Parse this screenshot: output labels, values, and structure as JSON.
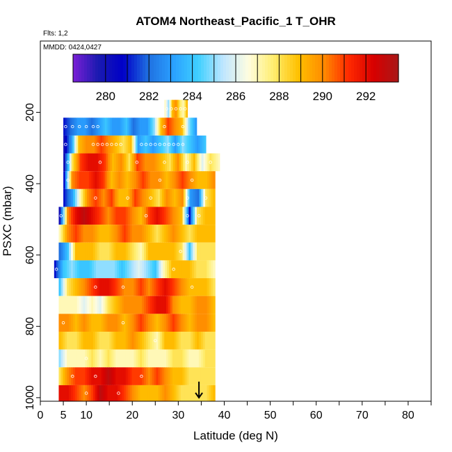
{
  "chart_data": {
    "type": "heatmap",
    "title": "ATOM4 Northeast_Pacific_1 T_OHR",
    "flights_label": "Flts: 1,2",
    "dates_label": "MMDD: 0424,0427",
    "xlabel": "Latitude (deg N)",
    "ylabel": "PSXC (mbar)",
    "xlim": [
      0,
      85
    ],
    "ylim": [
      1010,
      0
    ],
    "x_ticks": [
      0,
      5,
      10,
      20,
      30,
      40,
      50,
      60,
      70,
      80
    ],
    "x_minor_ticks": [
      15,
      25,
      35,
      45,
      55,
      65,
      75,
      85
    ],
    "y_ticks": [
      200,
      400,
      600,
      800,
      1000
    ],
    "colorbar": {
      "range": [
        278.5,
        293.5
      ],
      "ticks": [
        280,
        282,
        284,
        286,
        288,
        290,
        292
      ],
      "colors": [
        "#7a1fd6",
        "#1a1ab0",
        "#0000c8",
        "#1f6fe0",
        "#2aa0ff",
        "#3fd0ff",
        "#bfe6ff",
        "#fffde0",
        "#ffee70",
        "#ffc000",
        "#ff8c00",
        "#ff2a00",
        "#d80000",
        "#a81818"
      ]
    },
    "arrow_marker": {
      "x": 34.5,
      "y_from": 955,
      "y_to": 1000
    },
    "series": [
      {
        "p_top": 165,
        "p_bot": 215,
        "lat0": 27,
        "lat1": 32,
        "values": [
          287,
          285,
          289,
          290,
          288,
          287,
          289
        ],
        "circles": [
          27.5,
          28.5,
          29.5,
          30.5,
          31.5
        ]
      },
      {
        "p_top": 215,
        "p_bot": 265,
        "lat0": 5,
        "lat1": 34,
        "values": [
          281,
          282,
          283,
          283,
          282,
          283,
          284,
          283,
          283,
          284,
          282,
          283,
          283,
          285,
          289,
          291,
          290,
          289,
          285,
          283
        ],
        "circles": [
          5.5,
          7,
          8.5,
          10,
          11.5,
          12.5,
          27,
          31
        ]
      },
      {
        "p_top": 265,
        "p_bot": 315,
        "lat0": 5,
        "lat1": 36,
        "values": [
          280,
          283,
          289,
          290,
          290,
          291,
          290,
          289,
          288,
          289,
          283,
          284,
          283,
          284,
          285,
          283,
          285,
          284,
          283,
          284
        ],
        "circles": [
          5.5,
          11.5,
          12.5,
          13.5,
          14.5,
          15.5,
          16.5,
          17.5,
          22,
          23,
          24,
          25,
          26,
          27,
          28,
          29,
          30,
          31
        ]
      },
      {
        "p_top": 315,
        "p_bot": 365,
        "lat0": 5,
        "lat1": 39,
        "values": [
          280,
          288,
          291,
          292,
          292,
          291,
          289,
          290,
          288,
          291,
          290,
          290,
          289,
          288,
          290,
          287,
          289,
          286,
          288,
          287
        ],
        "circles": [
          6,
          13,
          21,
          27,
          32,
          37
        ]
      },
      {
        "p_top": 365,
        "p_bot": 415,
        "lat0": 5,
        "lat1": 38,
        "values": [
          281,
          290,
          291,
          291,
          292,
          291,
          289,
          290,
          289,
          290,
          291,
          290,
          290,
          289,
          290,
          291,
          290,
          289,
          289,
          290
        ],
        "circles": [
          6,
          26,
          33
        ]
      },
      {
        "p_top": 415,
        "p_bot": 465,
        "lat0": 5,
        "lat1": 38,
        "values": [
          281,
          283,
          287,
          290,
          291,
          290,
          291,
          289,
          289,
          291,
          290,
          289,
          288,
          290,
          289,
          290,
          283,
          282,
          288,
          289
        ],
        "circles": [
          12,
          19,
          24,
          32,
          36
        ]
      },
      {
        "p_top": 465,
        "p_bot": 515,
        "lat0": 4,
        "lat1": 38,
        "values": [
          280,
          290,
          292,
          293,
          292,
          291,
          290,
          291,
          291,
          290,
          289,
          291,
          292,
          291,
          290,
          289,
          281,
          288,
          289,
          289
        ],
        "circles": [
          4.5,
          23,
          32,
          34.5
        ]
      },
      {
        "p_top": 515,
        "p_bot": 565,
        "lat0": 4,
        "lat1": 38,
        "values": [
          287,
          290,
          291,
          290,
          290,
          289,
          289,
          290,
          291,
          290,
          290,
          289,
          288,
          289,
          290,
          289,
          288,
          289,
          289,
          289
        ],
        "circles": []
      },
      {
        "p_top": 565,
        "p_bot": 615,
        "lat0": 4,
        "lat1": 38,
        "values": [
          282,
          284,
          289,
          289,
          289,
          288,
          288,
          289,
          289,
          288,
          287,
          289,
          289,
          289,
          289,
          288,
          284,
          288,
          288,
          288
        ],
        "circles": [
          30.5
        ]
      },
      {
        "p_top": 615,
        "p_bot": 665,
        "lat0": 3,
        "lat1": 38,
        "values": [
          281,
          284,
          285,
          284,
          284,
          285,
          285,
          285,
          284,
          285,
          286,
          285,
          284,
          287,
          289,
          289,
          289,
          288,
          288,
          287
        ],
        "circles": [
          3.5,
          29
        ]
      },
      {
        "p_top": 665,
        "p_bot": 715,
        "lat0": 4,
        "lat1": 38,
        "values": [
          284,
          288,
          289,
          290,
          291,
          292,
          292,
          291,
          290,
          290,
          291,
          290,
          291,
          292,
          291,
          290,
          289,
          289,
          289,
          288
        ],
        "circles": [
          12,
          18,
          33
        ]
      },
      {
        "p_top": 715,
        "p_bot": 765,
        "lat0": 4,
        "lat1": 38,
        "values": [
          287,
          287,
          287,
          286,
          287,
          286,
          288,
          289,
          290,
          290,
          290,
          291,
          292,
          292,
          290,
          289,
          289,
          290,
          290,
          289
        ],
        "circles": []
      },
      {
        "p_top": 765,
        "p_bot": 815,
        "lat0": 4,
        "lat1": 38,
        "values": [
          290,
          290,
          289,
          290,
          289,
          289,
          290,
          290,
          289,
          290,
          291,
          290,
          289,
          290,
          291,
          290,
          289,
          290,
          290,
          289
        ],
        "circles": [
          5,
          18
        ]
      },
      {
        "p_top": 815,
        "p_bot": 865,
        "lat0": 4,
        "lat1": 38,
        "values": [
          289,
          288,
          288,
          289,
          289,
          288,
          288,
          289,
          289,
          290,
          289,
          288,
          287,
          289,
          289,
          288,
          288,
          289,
          288,
          288
        ],
        "circles": [
          25
        ]
      },
      {
        "p_top": 865,
        "p_bot": 915,
        "lat0": 4,
        "lat1": 38,
        "values": [
          285,
          287,
          287,
          287,
          288,
          287,
          288,
          287,
          287,
          287,
          288,
          287,
          287,
          287,
          288,
          288,
          287,
          287,
          288,
          288
        ],
        "circles": [
          10
        ]
      },
      {
        "p_top": 915,
        "p_bot": 965,
        "lat0": 4,
        "lat1": 38,
        "values": [
          288,
          290,
          291,
          291,
          292,
          292,
          293,
          292,
          292,
          291,
          291,
          290,
          291,
          290,
          289,
          289,
          288,
          288,
          288,
          288
        ],
        "circles": [
          7,
          12,
          22
        ]
      },
      {
        "p_top": 965,
        "p_bot": 1010,
        "lat0": 4,
        "lat1": 38,
        "values": [
          292,
          292,
          291,
          290,
          291,
          293,
          292,
          292,
          291,
          290,
          289,
          289,
          289,
          290,
          289,
          288,
          288,
          288,
          288,
          289
        ],
        "circles": [
          10,
          17
        ]
      }
    ]
  }
}
